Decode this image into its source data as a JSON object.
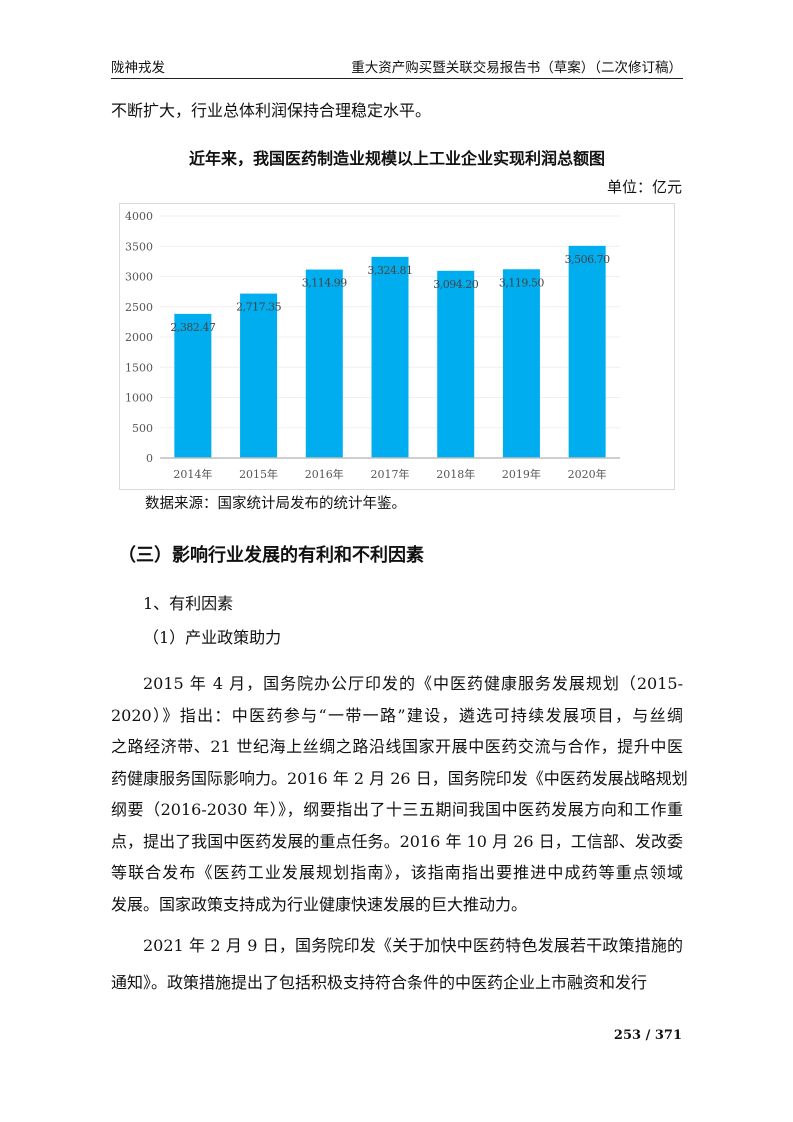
{
  "header": {
    "left": "陇神戎发",
    "right": "重大资产购买暨关联交易报告书（草案）（二次修订稿）"
  },
  "intro_line": "不断扩大，行业总体利润保持合理稳定水平。",
  "chart_title": "近年来，我国医药制造业规模以上工业企业实现利润总额图",
  "unit": "单位：亿元",
  "chart_data": {
    "type": "bar",
    "categories": [
      "2014年",
      "2015年",
      "2016年",
      "2017年",
      "2018年",
      "2019年",
      "2020年"
    ],
    "values": [
      2382.47,
      2717.35,
      3114.99,
      3324.81,
      3094.2,
      3119.5,
      3506.7
    ],
    "data_labels": [
      "2,382.47",
      "2,717.35",
      "3,114.99",
      "3,324.81",
      "3,094.20",
      "3,119.50",
      "3,506.70"
    ],
    "ylim": [
      0,
      4000
    ],
    "yticks": [
      "0",
      "500",
      "1000",
      "1500",
      "2000",
      "2500",
      "3000",
      "3500",
      "4000"
    ],
    "grid": true,
    "bar_color": "#00AEEF"
  },
  "source": "数据来源：国家统计局发布的统计年鉴。",
  "section_heading": "（三）影响行业发展的有利和不利因素",
  "sub1": "1、有利因素",
  "sub2": "（1）产业政策助力",
  "para1": [
    "2015 年 4 月，国务院办公厅印发的《中医药健康服务发展规划（2015-",
    "2020）》指出：中医药参与“一带一路”建设，遴选可持续发展项目，与丝绸",
    "之路经济带、21 世纪海上丝绸之路沿线国家开展中医药交流与合作，提升中医",
    "药健康服务国际影响力。2016 年 2 月 26 日，国务院印发《中医药发展战略规划",
    "纲要（2016-2030 年）》，纲要指出了十三五期间我国中医药发展方向和工作重",
    "点，提出了我国中医药发展的重点任务。2016 年 10 月 26 日，工信部、发改委",
    "等联合发布《医药工业发展规划指南》，该指南指出要推进中成药等重点领域",
    "发展。国家政策支持成为行业健康快速发展的巨大推动力。"
  ],
  "para2": [
    "2021 年 2 月 9 日，国务院印发《关于加快中医药特色发展若干政策措施的",
    "通知》。政策措施提出了包括积极支持符合条件的中医药企业上市融资和发行"
  ],
  "page_number": "253 / 371"
}
